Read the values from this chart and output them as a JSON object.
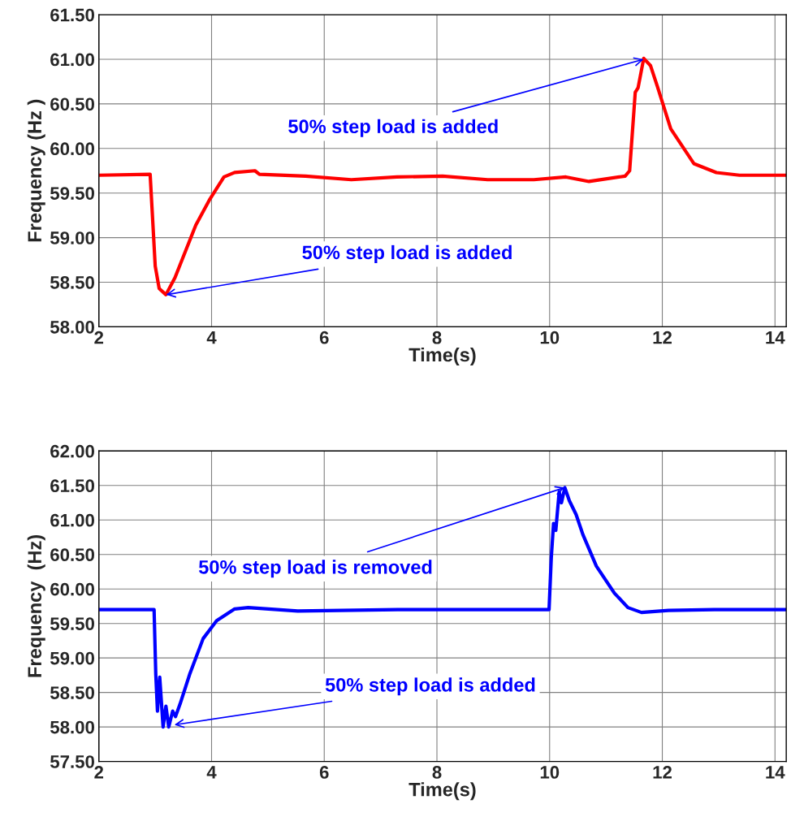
{
  "chart_data": [
    {
      "type": "line",
      "xlabel": "Time(s)",
      "ylabel": "Frequency (Hz )",
      "grid": true,
      "xlim": [
        2,
        14.2
      ],
      "xticks": [
        2,
        4,
        6,
        8,
        10,
        12,
        14
      ],
      "ylim": [
        58,
        61.5
      ],
      "yticks": [
        {
          "value": 58,
          "label": "58.00"
        },
        {
          "value": 58.5,
          "label": "58.50"
        },
        {
          "value": 59,
          "label": "59.00"
        },
        {
          "value": 59.5,
          "label": "59.50"
        },
        {
          "value": 60,
          "label": "60.00"
        },
        {
          "value": 60.5,
          "label": "60.50"
        },
        {
          "value": 61,
          "label": "61.00"
        },
        {
          "value": 61.5,
          "label": "61.50"
        }
      ],
      "annotations": [
        {
          "text": "50% step load is added",
          "x": 11.67,
          "y": 61.0
        },
        {
          "text": "50% step load is added",
          "x": 3.19,
          "y": 58.36
        }
      ],
      "series": [
        {
          "color": "#ff0000",
          "x": [
            2,
            2.91,
            3.0,
            3.07,
            3.19,
            3.35,
            3.72,
            3.96,
            4.22,
            4.41,
            4.77,
            4.85,
            5.67,
            6.48,
            7.29,
            8.1,
            8.9,
            9.72,
            10.29,
            10.7,
            11.34,
            11.42,
            11.52,
            11.57,
            11.67,
            11.79,
            11.91,
            12.15,
            12.56,
            12.96,
            13.37,
            14.2
          ],
          "values": [
            59.7,
            59.71,
            58.68,
            58.43,
            58.36,
            58.55,
            59.14,
            59.42,
            59.68,
            59.73,
            59.75,
            59.71,
            59.69,
            59.65,
            59.68,
            59.69,
            59.65,
            59.65,
            59.68,
            59.63,
            59.69,
            59.75,
            60.63,
            60.68,
            61.01,
            60.93,
            60.7,
            60.22,
            59.83,
            59.73,
            59.7,
            59.7
          ]
        }
      ]
    },
    {
      "type": "line",
      "xlabel": "Time(s)",
      "ylabel": "Frequency  (Hz)",
      "grid": true,
      "xlim": [
        2,
        14.2
      ],
      "xticks": [
        2,
        4,
        6,
        8,
        10,
        12,
        14
      ],
      "ylim": [
        57.5,
        62
      ],
      "yticks": [
        {
          "value": 57.5,
          "label": "57.50"
        },
        {
          "value": 58,
          "label": "58.00"
        },
        {
          "value": 58.5,
          "label": "58.50"
        },
        {
          "value": 59,
          "label": "59.00"
        },
        {
          "value": 59.5,
          "label": "59.50"
        },
        {
          "value": 60,
          "label": "60.00"
        },
        {
          "value": 60.5,
          "label": "60.50"
        },
        {
          "value": 61,
          "label": "61.00"
        },
        {
          "value": 61.5,
          "label": "61.50"
        },
        {
          "value": 62,
          "label": "62.00"
        }
      ],
      "annotations": [
        {
          "text": "50% step load is removed",
          "x": 10.27,
          "y": 61.47
        },
        {
          "text": "50% step load is added",
          "x": 3.34,
          "y": 58.03
        }
      ],
      "series": [
        {
          "color": "#0000ff",
          "x": [
            2,
            2.98,
            3.01,
            3.04,
            3.08,
            3.14,
            3.19,
            3.24,
            3.31,
            3.36,
            3.44,
            3.61,
            3.85,
            4.09,
            4.41,
            4.65,
            5.53,
            7.3,
            9.99,
            10.03,
            10.07,
            10.11,
            10.17,
            10.21,
            10.27,
            10.35,
            10.47,
            10.59,
            10.83,
            11.15,
            11.39,
            11.63,
            12.11,
            12.92,
            14.2
          ],
          "values": [
            59.7,
            59.7,
            58.76,
            58.23,
            58.72,
            58.0,
            58.3,
            58.0,
            58.23,
            58.15,
            58.33,
            58.76,
            59.28,
            59.54,
            59.71,
            59.73,
            59.68,
            59.7,
            59.7,
            60.46,
            60.95,
            60.85,
            61.41,
            61.25,
            61.47,
            61.28,
            61.08,
            60.79,
            60.33,
            59.94,
            59.73,
            59.66,
            59.69,
            59.7,
            59.7
          ]
        }
      ]
    }
  ]
}
